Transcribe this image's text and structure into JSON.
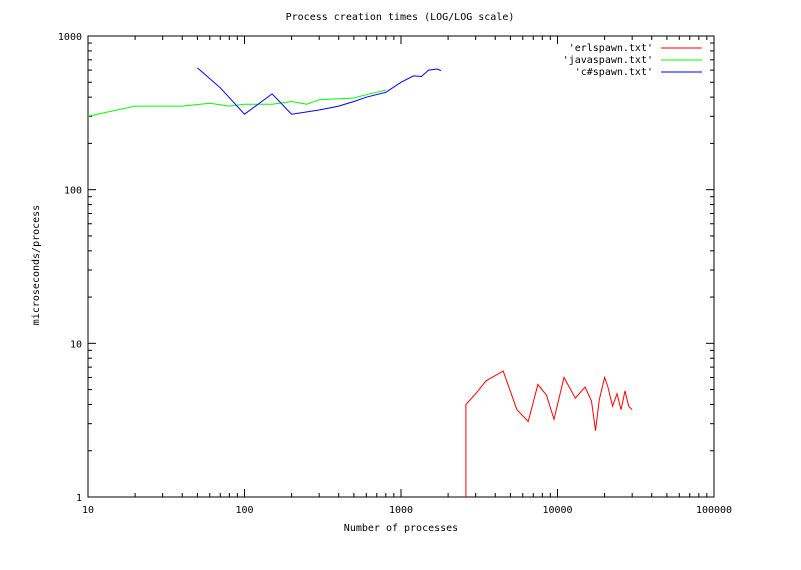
{
  "chart_data": {
    "type": "line",
    "title": "Process creation times (LOG/LOG scale)",
    "xlabel": "Number of processes",
    "ylabel": "microseconds/process",
    "x_scale": "log",
    "y_scale": "log",
    "xlim": [
      10,
      100000
    ],
    "ylim": [
      1,
      1000
    ],
    "x_ticks": [
      10,
      100,
      1000,
      10000,
      100000
    ],
    "x_tick_labels": [
      "10",
      "100",
      "1000",
      "10000",
      "100000"
    ],
    "y_ticks": [
      1,
      10,
      100,
      1000
    ],
    "y_tick_labels": [
      "1",
      "10",
      "100",
      "1000"
    ],
    "grid": false,
    "legend_position": "top-right",
    "series": [
      {
        "name": "'erlspawn.txt'",
        "color": "#ff0000",
        "x": [
          2600,
          2600,
          3000,
          3500,
          4500,
          5500,
          6500,
          7500,
          8500,
          9500,
          11000,
          13000,
          15000,
          16500,
          17500,
          18500,
          20000,
          21000,
          22500,
          24000,
          25500,
          27000,
          28500,
          30000
        ],
        "y": [
          0.85,
          4.0,
          4.7,
          5.7,
          6.6,
          3.7,
          3.1,
          5.4,
          4.6,
          3.2,
          6.0,
          4.4,
          5.2,
          4.2,
          2.7,
          4.3,
          6.0,
          5.2,
          3.9,
          4.7,
          3.7,
          4.9,
          3.9,
          3.7
        ]
      },
      {
        "name": "'javaspawn.txt'",
        "color": "#00ff00",
        "x": [
          10,
          20,
          40,
          60,
          80,
          100,
          150,
          200,
          250,
          300,
          400,
          500,
          600,
          700,
          800
        ],
        "y": [
          300,
          350,
          350,
          365,
          350,
          360,
          360,
          375,
          360,
          385,
          390,
          395,
          415,
          430,
          445
        ]
      },
      {
        "name": "'c#spawn.txt'",
        "color": "#0000ff",
        "x": [
          50,
          70,
          100,
          150,
          200,
          300,
          400,
          500,
          600,
          800,
          1000,
          1200,
          1350,
          1500,
          1700,
          1800
        ],
        "y": [
          620,
          460,
          310,
          420,
          310,
          330,
          350,
          375,
          400,
          430,
          500,
          550,
          545,
          600,
          610,
          595
        ]
      }
    ]
  }
}
